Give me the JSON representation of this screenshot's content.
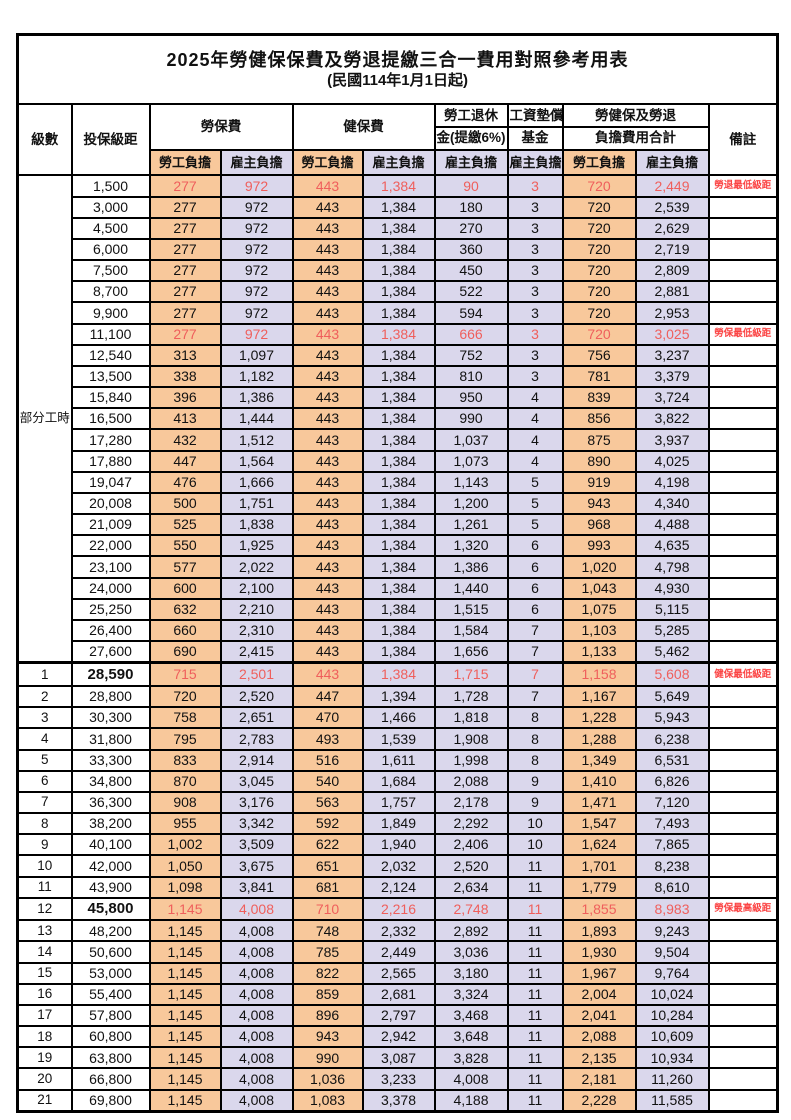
{
  "title": "2025年勞健保保費及勞退提繳三合一費用對照參考用表",
  "subtitle": "(民國114年1月1日起)",
  "header": {
    "level": "級數",
    "bracket": "投保級距",
    "labor_ins": "勞保費",
    "health_ins": "健保費",
    "pension_line1": "勞工退休",
    "pension_line2": "金(提繳6%)",
    "wage_fund_line1": "工資墊償",
    "wage_fund_line2": "基金",
    "total_line1": "勞健保及勞退",
    "total_line2": "負擔費用合計",
    "note": "備註",
    "employee": "勞工負擔",
    "employer": "雇主負擔"
  },
  "part_time_label": "部分工時",
  "part_time_span": 23,
  "colors": {
    "employee_bg": "#f8c89b",
    "employer_bg": "#dad7ec",
    "highlight_red": "#ef5f5c",
    "note_red": "#fb4343",
    "border": "#000000"
  },
  "rows": [
    {
      "br": "1,500",
      "le": "277",
      "lr": "972",
      "he": "443",
      "hr": "1,384",
      "pn": "90",
      "fd": "3",
      "te": "720",
      "tr": "2,449",
      "nt": "勞退最低級距",
      "red": true
    },
    {
      "br": "3,000",
      "le": "277",
      "lr": "972",
      "he": "443",
      "hr": "1,384",
      "pn": "180",
      "fd": "3",
      "te": "720",
      "tr": "2,539"
    },
    {
      "br": "4,500",
      "le": "277",
      "lr": "972",
      "he": "443",
      "hr": "1,384",
      "pn": "270",
      "fd": "3",
      "te": "720",
      "tr": "2,629"
    },
    {
      "br": "6,000",
      "le": "277",
      "lr": "972",
      "he": "443",
      "hr": "1,384",
      "pn": "360",
      "fd": "3",
      "te": "720",
      "tr": "2,719"
    },
    {
      "br": "7,500",
      "le": "277",
      "lr": "972",
      "he": "443",
      "hr": "1,384",
      "pn": "450",
      "fd": "3",
      "te": "720",
      "tr": "2,809"
    },
    {
      "br": "8,700",
      "le": "277",
      "lr": "972",
      "he": "443",
      "hr": "1,384",
      "pn": "522",
      "fd": "3",
      "te": "720",
      "tr": "2,881"
    },
    {
      "br": "9,900",
      "le": "277",
      "lr": "972",
      "he": "443",
      "hr": "1,384",
      "pn": "594",
      "fd": "3",
      "te": "720",
      "tr": "2,953"
    },
    {
      "br": "11,100",
      "le": "277",
      "lr": "972",
      "he": "443",
      "hr": "1,384",
      "pn": "666",
      "fd": "3",
      "te": "720",
      "tr": "3,025",
      "nt": "勞保最低級距",
      "red": true
    },
    {
      "br": "12,540",
      "le": "313",
      "lr": "1,097",
      "he": "443",
      "hr": "1,384",
      "pn": "752",
      "fd": "3",
      "te": "756",
      "tr": "3,237"
    },
    {
      "br": "13,500",
      "le": "338",
      "lr": "1,182",
      "he": "443",
      "hr": "1,384",
      "pn": "810",
      "fd": "3",
      "te": "781",
      "tr": "3,379"
    },
    {
      "br": "15,840",
      "le": "396",
      "lr": "1,386",
      "he": "443",
      "hr": "1,384",
      "pn": "950",
      "fd": "4",
      "te": "839",
      "tr": "3,724"
    },
    {
      "br": "16,500",
      "le": "413",
      "lr": "1,444",
      "he": "443",
      "hr": "1,384",
      "pn": "990",
      "fd": "4",
      "te": "856",
      "tr": "3,822"
    },
    {
      "br": "17,280",
      "le": "432",
      "lr": "1,512",
      "he": "443",
      "hr": "1,384",
      "pn": "1,037",
      "fd": "4",
      "te": "875",
      "tr": "3,937"
    },
    {
      "br": "17,880",
      "le": "447",
      "lr": "1,564",
      "he": "443",
      "hr": "1,384",
      "pn": "1,073",
      "fd": "4",
      "te": "890",
      "tr": "4,025"
    },
    {
      "br": "19,047",
      "le": "476",
      "lr": "1,666",
      "he": "443",
      "hr": "1,384",
      "pn": "1,143",
      "fd": "5",
      "te": "919",
      "tr": "4,198"
    },
    {
      "br": "20,008",
      "le": "500",
      "lr": "1,751",
      "he": "443",
      "hr": "1,384",
      "pn": "1,200",
      "fd": "5",
      "te": "943",
      "tr": "4,340"
    },
    {
      "br": "21,009",
      "le": "525",
      "lr": "1,838",
      "he": "443",
      "hr": "1,384",
      "pn": "1,261",
      "fd": "5",
      "te": "968",
      "tr": "4,488"
    },
    {
      "br": "22,000",
      "le": "550",
      "lr": "1,925",
      "he": "443",
      "hr": "1,384",
      "pn": "1,320",
      "fd": "6",
      "te": "993",
      "tr": "4,635"
    },
    {
      "br": "23,100",
      "le": "577",
      "lr": "2,022",
      "he": "443",
      "hr": "1,384",
      "pn": "1,386",
      "fd": "6",
      "te": "1,020",
      "tr": "4,798"
    },
    {
      "br": "24,000",
      "le": "600",
      "lr": "2,100",
      "he": "443",
      "hr": "1,384",
      "pn": "1,440",
      "fd": "6",
      "te": "1,043",
      "tr": "4,930"
    },
    {
      "br": "25,250",
      "le": "632",
      "lr": "2,210",
      "he": "443",
      "hr": "1,384",
      "pn": "1,515",
      "fd": "6",
      "te": "1,075",
      "tr": "5,115"
    },
    {
      "br": "26,400",
      "le": "660",
      "lr": "2,310",
      "he": "443",
      "hr": "1,384",
      "pn": "1,584",
      "fd": "7",
      "te": "1,103",
      "tr": "5,285"
    },
    {
      "br": "27,600",
      "le": "690",
      "lr": "2,415",
      "he": "443",
      "hr": "1,384",
      "pn": "1,656",
      "fd": "7",
      "te": "1,133",
      "tr": "5,462"
    },
    {
      "lv": "1",
      "br": "28,590",
      "le": "715",
      "lr": "2,501",
      "he": "443",
      "hr": "1,384",
      "pn": "1,715",
      "fd": "7",
      "te": "1,158",
      "tr": "5,608",
      "nt": "健保最低級距",
      "red": true,
      "b": true,
      "s": true
    },
    {
      "lv": "2",
      "br": "28,800",
      "le": "720",
      "lr": "2,520",
      "he": "447",
      "hr": "1,394",
      "pn": "1,728",
      "fd": "7",
      "te": "1,167",
      "tr": "5,649"
    },
    {
      "lv": "3",
      "br": "30,300",
      "le": "758",
      "lr": "2,651",
      "he": "470",
      "hr": "1,466",
      "pn": "1,818",
      "fd": "8",
      "te": "1,228",
      "tr": "5,943"
    },
    {
      "lv": "4",
      "br": "31,800",
      "le": "795",
      "lr": "2,783",
      "he": "493",
      "hr": "1,539",
      "pn": "1,908",
      "fd": "8",
      "te": "1,288",
      "tr": "6,238"
    },
    {
      "lv": "5",
      "br": "33,300",
      "le": "833",
      "lr": "2,914",
      "he": "516",
      "hr": "1,611",
      "pn": "1,998",
      "fd": "8",
      "te": "1,349",
      "tr": "6,531"
    },
    {
      "lv": "6",
      "br": "34,800",
      "le": "870",
      "lr": "3,045",
      "he": "540",
      "hr": "1,684",
      "pn": "2,088",
      "fd": "9",
      "te": "1,410",
      "tr": "6,826"
    },
    {
      "lv": "7",
      "br": "36,300",
      "le": "908",
      "lr": "3,176",
      "he": "563",
      "hr": "1,757",
      "pn": "2,178",
      "fd": "9",
      "te": "1,471",
      "tr": "7,120"
    },
    {
      "lv": "8",
      "br": "38,200",
      "le": "955",
      "lr": "3,342",
      "he": "592",
      "hr": "1,849",
      "pn": "2,292",
      "fd": "10",
      "te": "1,547",
      "tr": "7,493"
    },
    {
      "lv": "9",
      "br": "40,100",
      "le": "1,002",
      "lr": "3,509",
      "he": "622",
      "hr": "1,940",
      "pn": "2,406",
      "fd": "10",
      "te": "1,624",
      "tr": "7,865"
    },
    {
      "lv": "10",
      "br": "42,000",
      "le": "1,050",
      "lr": "3,675",
      "he": "651",
      "hr": "2,032",
      "pn": "2,520",
      "fd": "11",
      "te": "1,701",
      "tr": "8,238"
    },
    {
      "lv": "11",
      "br": "43,900",
      "le": "1,098",
      "lr": "3,841",
      "he": "681",
      "hr": "2,124",
      "pn": "2,634",
      "fd": "11",
      "te": "1,779",
      "tr": "8,610"
    },
    {
      "lv": "12",
      "br": "45,800",
      "le": "1,145",
      "lr": "4,008",
      "he": "710",
      "hr": "2,216",
      "pn": "2,748",
      "fd": "11",
      "te": "1,855",
      "tr": "8,983",
      "nt": "勞保最高級距",
      "red": true,
      "b": true
    },
    {
      "lv": "13",
      "br": "48,200",
      "le": "1,145",
      "lr": "4,008",
      "he": "748",
      "hr": "2,332",
      "pn": "2,892",
      "fd": "11",
      "te": "1,893",
      "tr": "9,243"
    },
    {
      "lv": "14",
      "br": "50,600",
      "le": "1,145",
      "lr": "4,008",
      "he": "785",
      "hr": "2,449",
      "pn": "3,036",
      "fd": "11",
      "te": "1,930",
      "tr": "9,504"
    },
    {
      "lv": "15",
      "br": "53,000",
      "le": "1,145",
      "lr": "4,008",
      "he": "822",
      "hr": "2,565",
      "pn": "3,180",
      "fd": "11",
      "te": "1,967",
      "tr": "9,764"
    },
    {
      "lv": "16",
      "br": "55,400",
      "le": "1,145",
      "lr": "4,008",
      "he": "859",
      "hr": "2,681",
      "pn": "3,324",
      "fd": "11",
      "te": "2,004",
      "tr": "10,024"
    },
    {
      "lv": "17",
      "br": "57,800",
      "le": "1,145",
      "lr": "4,008",
      "he": "896",
      "hr": "2,797",
      "pn": "3,468",
      "fd": "11",
      "te": "2,041",
      "tr": "10,284"
    },
    {
      "lv": "18",
      "br": "60,800",
      "le": "1,145",
      "lr": "4,008",
      "he": "943",
      "hr": "2,942",
      "pn": "3,648",
      "fd": "11",
      "te": "2,088",
      "tr": "10,609"
    },
    {
      "lv": "19",
      "br": "63,800",
      "le": "1,145",
      "lr": "4,008",
      "he": "990",
      "hr": "3,087",
      "pn": "3,828",
      "fd": "11",
      "te": "2,135",
      "tr": "10,934"
    },
    {
      "lv": "20",
      "br": "66,800",
      "le": "1,145",
      "lr": "4,008",
      "he": "1,036",
      "hr": "3,233",
      "pn": "4,008",
      "fd": "11",
      "te": "2,181",
      "tr": "11,260"
    },
    {
      "lv": "21",
      "br": "69,800",
      "le": "1,145",
      "lr": "4,008",
      "he": "1,083",
      "hr": "3,378",
      "pn": "4,188",
      "fd": "11",
      "te": "2,228",
      "tr": "11,585"
    }
  ]
}
